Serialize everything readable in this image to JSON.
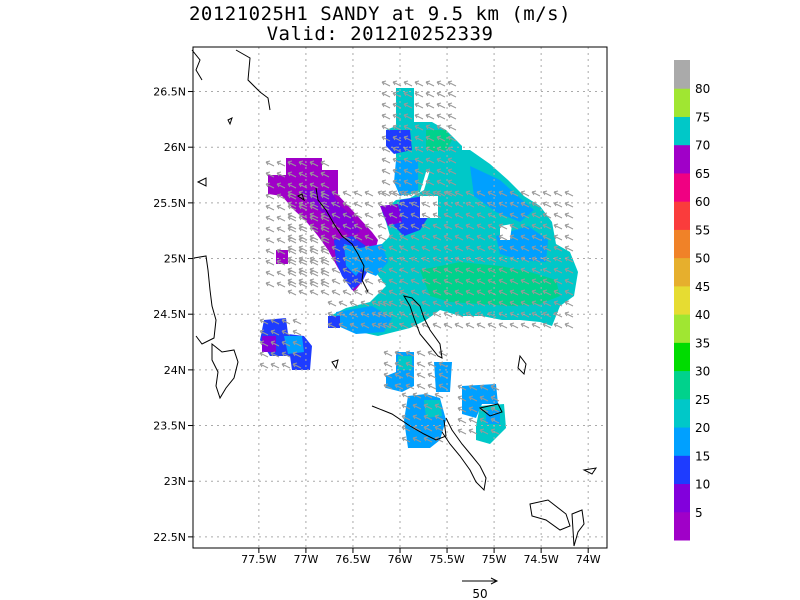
{
  "title": {
    "line1": "20121025H1 SANDY at 9.5 km (m/s)",
    "line2": "Valid: 201210252339"
  },
  "map": {
    "lat_labels": [
      "26.5N",
      "26N",
      "25.5N",
      "25N",
      "24.5N",
      "24N",
      "23.5N",
      "23N",
      "22.5N"
    ],
    "lat_values": [
      26.5,
      26,
      25.5,
      25,
      24.5,
      24,
      23.5,
      23,
      22.5
    ],
    "lon_labels": [
      "77.5W",
      "77W",
      "76.5W",
      "76W",
      "75.5W",
      "75W",
      "74.5W",
      "74W"
    ],
    "lon_values": [
      -77.5,
      -77,
      -76.5,
      -76,
      -75.5,
      -75,
      -74.5,
      -74
    ],
    "lon_range": [
      -78.2,
      -73.8
    ],
    "lat_range": [
      22.4,
      26.9
    ],
    "gridlines": true,
    "wind_field_present": true,
    "reference_vector_label": "50"
  },
  "colorbar": {
    "labels": [
      "5",
      "10",
      "15",
      "20",
      "25",
      "30",
      "35",
      "40",
      "45",
      "50",
      "55",
      "60",
      "65",
      "70",
      "75",
      "80"
    ],
    "colors": [
      "#a000c8",
      "#8200dc",
      "#1e3cff",
      "#00a0ff",
      "#00c8c8",
      "#00d28c",
      "#00dc00",
      "#a0e632",
      "#e6dc32",
      "#e6af2d",
      "#f08228",
      "#fa3c3c",
      "#f00082",
      "#a000c8",
      "#00c8c8",
      "#a0e632",
      "#aaaaaa"
    ]
  },
  "colors": {
    "frame": "#000000",
    "grid": "#aaaaaa",
    "coast": "#000000",
    "vector": "#999999"
  }
}
